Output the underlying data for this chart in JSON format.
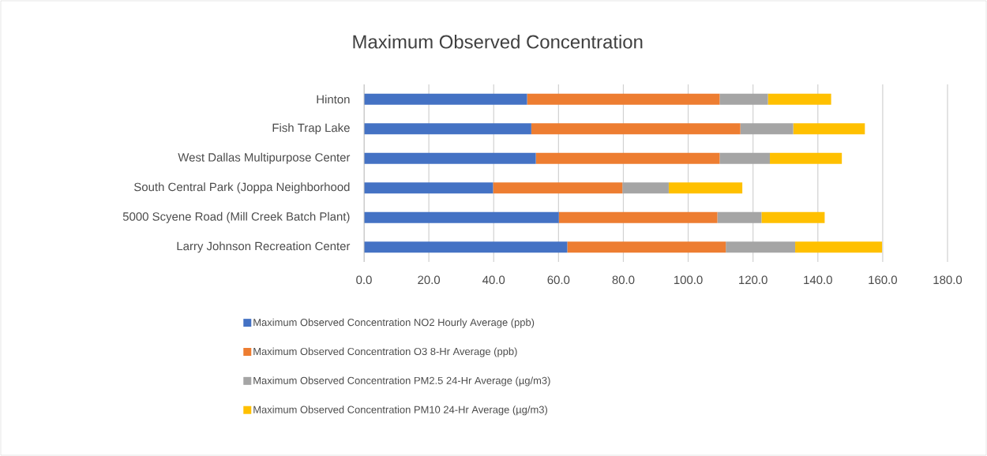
{
  "chart_data": {
    "type": "bar",
    "orientation": "horizontal",
    "stacked": true,
    "title": "Maximum Observed Concentration",
    "categories": [
      "Hinton",
      "Fish Trap Lake",
      "West Dallas Multipurpose Center",
      "South Central Park (Joppa Neighborhood",
      "5000 Scyene Road (Mill Creek Batch Plant)",
      "Larry Johnson Recreation Center"
    ],
    "series": [
      {
        "name": "Maximum Observed Concentration NO2  Hourly Average (ppb)",
        "color": "#4472c4",
        "values": [
          50.3,
          51.6,
          53.0,
          39.8,
          60.1,
          62.7
        ]
      },
      {
        "name": "Maximum Observed Concentration O3  8-Hr Average (ppb)",
        "color": "#ed7d31",
        "values": [
          59.4,
          64.5,
          56.7,
          39.9,
          48.9,
          48.9
        ]
      },
      {
        "name": "Maximum Observed Concentration PM2.5  24-Hr Average (µg/m3)",
        "color": "#a5a5a5",
        "values": [
          14.9,
          16.3,
          15.5,
          14.3,
          13.6,
          21.4
        ]
      },
      {
        "name": "Maximum Observed Concentration PM10  24-Hr Average (µg/m3)",
        "color": "#ffc000",
        "values": [
          19.5,
          22.1,
          22.2,
          22.7,
          19.5,
          26.8
        ]
      }
    ],
    "xlim": [
      0,
      180
    ],
    "xticks": [
      {
        "value": 0,
        "label": "0.0"
      },
      {
        "value": 20,
        "label": "20.0"
      },
      {
        "value": 40,
        "label": "40.0"
      },
      {
        "value": 60,
        "label": "60.0"
      },
      {
        "value": 80,
        "label": "80.0"
      },
      {
        "value": 100,
        "label": "100.0"
      },
      {
        "value": 120,
        "label": "120.0"
      },
      {
        "value": 140,
        "label": "140.0"
      },
      {
        "value": 160,
        "label": "160.0"
      },
      {
        "value": 180,
        "label": "180.0"
      }
    ],
    "grid": "x",
    "legend": "bottom"
  }
}
